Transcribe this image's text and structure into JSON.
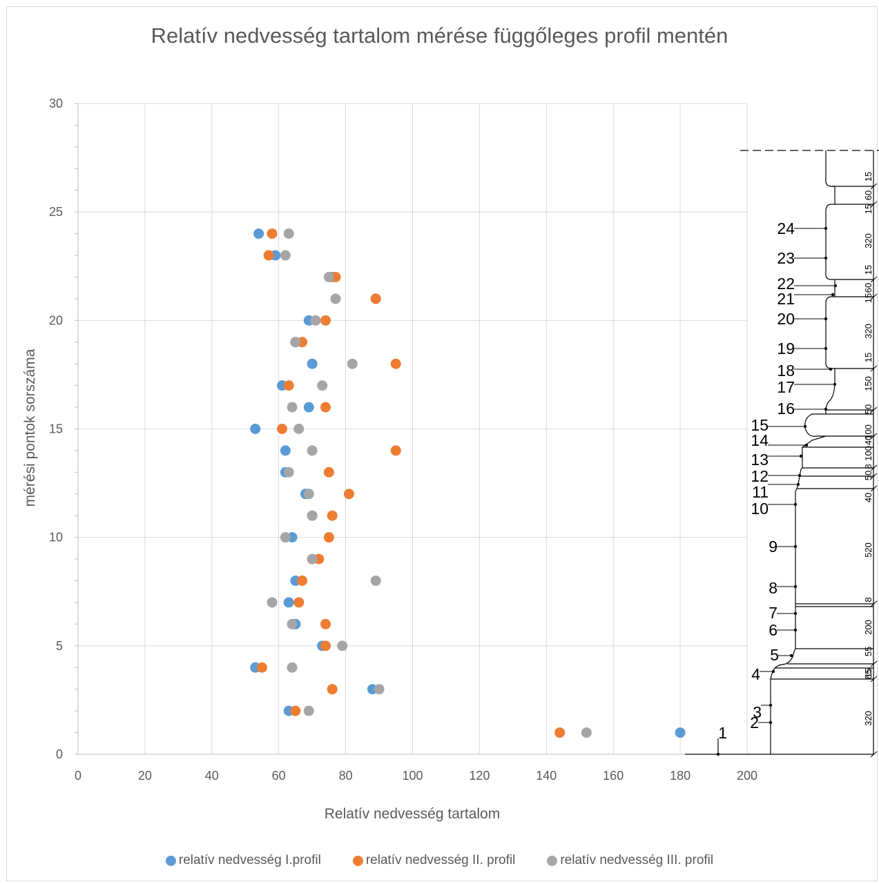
{
  "chart_data": {
    "type": "scatter",
    "title": "Relatív nedvesség tartalom mérése függőleges profil mentén",
    "xlabel": "Relatív nedvesség tartalom",
    "ylabel": "mérési pontok sorszáma",
    "xlim": [
      0,
      200
    ],
    "ylim": [
      0,
      30
    ],
    "xticks": [
      "0",
      "20",
      "40",
      "60",
      "80",
      "100",
      "120",
      "140",
      "160",
      "180",
      "200"
    ],
    "yticks": [
      "0",
      "5",
      "10",
      "15",
      "20",
      "25",
      "30"
    ],
    "grid": true,
    "legend_position": "bottom",
    "series": [
      {
        "name": "relatív nedvesség I.profil",
        "color": "#5b9bd5",
        "points": [
          [
            180,
            1
          ],
          [
            63,
            2
          ],
          [
            88,
            3
          ],
          [
            53,
            4
          ],
          [
            73,
            5
          ],
          [
            65,
            6
          ],
          [
            63,
            7
          ],
          [
            65,
            8
          ],
          [
            70,
            9
          ],
          [
            64,
            10
          ],
          [
            70,
            11
          ],
          [
            68,
            12
          ],
          [
            62,
            13
          ],
          [
            62,
            14
          ],
          [
            53,
            15
          ],
          [
            69,
            16
          ],
          [
            61,
            17
          ],
          [
            70,
            18
          ],
          [
            65,
            19
          ],
          [
            69,
            20
          ],
          [
            89,
            21
          ],
          [
            76,
            22
          ],
          [
            59,
            23
          ],
          [
            54,
            24
          ]
        ]
      },
      {
        "name": "relatív nedvesség II. profil",
        "color": "#ed7d31",
        "points": [
          [
            144,
            1
          ],
          [
            65,
            2
          ],
          [
            76,
            3
          ],
          [
            55,
            4
          ],
          [
            74,
            5
          ],
          [
            74,
            6
          ],
          [
            66,
            7
          ],
          [
            67,
            8
          ],
          [
            72,
            9
          ],
          [
            75,
            10
          ],
          [
            76,
            11
          ],
          [
            81,
            12
          ],
          [
            75,
            13
          ],
          [
            95,
            14
          ],
          [
            61,
            15
          ],
          [
            74,
            16
          ],
          [
            63,
            17
          ],
          [
            95,
            18
          ],
          [
            67,
            19
          ],
          [
            74,
            20
          ],
          [
            89,
            21
          ],
          [
            77,
            22
          ],
          [
            57,
            23
          ],
          [
            58,
            24
          ]
        ]
      },
      {
        "name": "relatív nedvesség III. profil",
        "color": "#a5a5a5",
        "points": [
          [
            152,
            1
          ],
          [
            69,
            2
          ],
          [
            90,
            3
          ],
          [
            64,
            4
          ],
          [
            79,
            5
          ],
          [
            64,
            6
          ],
          [
            58,
            7
          ],
          [
            89,
            8
          ],
          [
            70,
            9
          ],
          [
            62,
            10
          ],
          [
            70,
            11
          ],
          [
            69,
            12
          ],
          [
            63,
            13
          ],
          [
            70,
            14
          ],
          [
            66,
            15
          ],
          [
            64,
            16
          ],
          [
            73,
            17
          ],
          [
            82,
            18
          ],
          [
            65,
            19
          ],
          [
            71,
            20
          ],
          [
            77,
            21
          ],
          [
            75,
            22
          ],
          [
            62,
            23
          ],
          [
            63,
            24
          ]
        ]
      }
    ]
  },
  "profile_drawing": {
    "point_labels": [
      "1",
      "2",
      "3",
      "4",
      "5",
      "6",
      "7",
      "8",
      "9",
      "10",
      "11",
      "12",
      "13",
      "14",
      "15",
      "16",
      "17",
      "18",
      "19",
      "20",
      "21",
      "22",
      "23",
      "24"
    ],
    "dimensions": [
      "320",
      "85",
      "15",
      "55",
      "200",
      "8",
      "520",
      "40",
      "50",
      "8",
      "100",
      "40",
      "100",
      "50",
      "150",
      "15",
      "320",
      "15",
      "60",
      "15",
      "320",
      "15",
      "60",
      "15"
    ]
  }
}
